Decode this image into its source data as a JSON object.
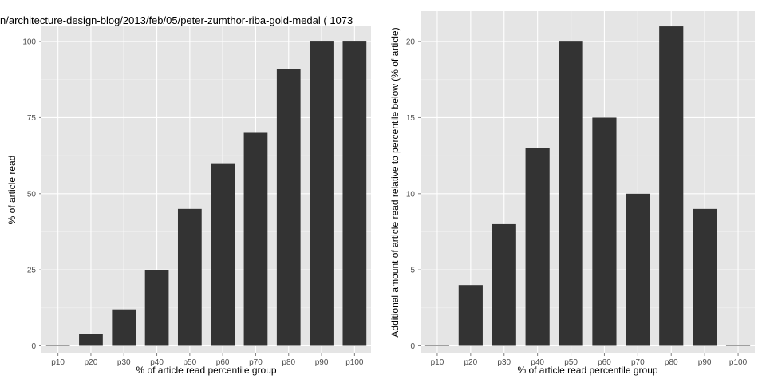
{
  "page": {
    "title": "n/architecture-design-blog/2013/feb/05/peter-zumthor-riba-gold-medal ( 1073"
  },
  "colors": {
    "panel_background": "#e5e5e5",
    "grid_major": "#ffffff",
    "grid_minor": "#f2f2f2",
    "bar": "#333333",
    "tick_text": "#4d4d4d"
  },
  "chart_data": [
    {
      "type": "bar",
      "title": "n/architecture-design-blog/2013/feb/05/peter-zumthor-riba-gold-medal ( 1073",
      "xlabel": "% of article read percentile group",
      "ylabel": "% of article read",
      "categories": [
        "p10",
        "p20",
        "p30",
        "p40",
        "p50",
        "p60",
        "p70",
        "p80",
        "p90",
        "p100"
      ],
      "values": [
        0,
        4,
        12,
        25,
        45,
        60,
        70,
        91,
        100,
        100
      ],
      "ylim": [
        -2.5,
        105
      ],
      "yticks": [
        0,
        25,
        50,
        75,
        100
      ],
      "ytick_labels": [
        "0",
        "25",
        "50",
        "75",
        "100"
      ],
      "grid": true,
      "legend": "none"
    },
    {
      "type": "bar",
      "title": "",
      "xlabel": "% of article read percentile group",
      "ylabel": "Additional amount of article read relative to percentile below (% of article)",
      "categories": [
        "p10",
        "p20",
        "p30",
        "p40",
        "p50",
        "p60",
        "p70",
        "p80",
        "p90",
        "p100"
      ],
      "values": [
        0,
        4,
        8,
        13,
        20,
        15,
        10,
        21,
        9,
        0
      ],
      "ylim": [
        -0.5,
        22
      ],
      "yticks": [
        0,
        5,
        10,
        15,
        20
      ],
      "ytick_labels": [
        "0",
        "5",
        "10",
        "15",
        "20"
      ],
      "grid": true,
      "legend": "none"
    }
  ]
}
